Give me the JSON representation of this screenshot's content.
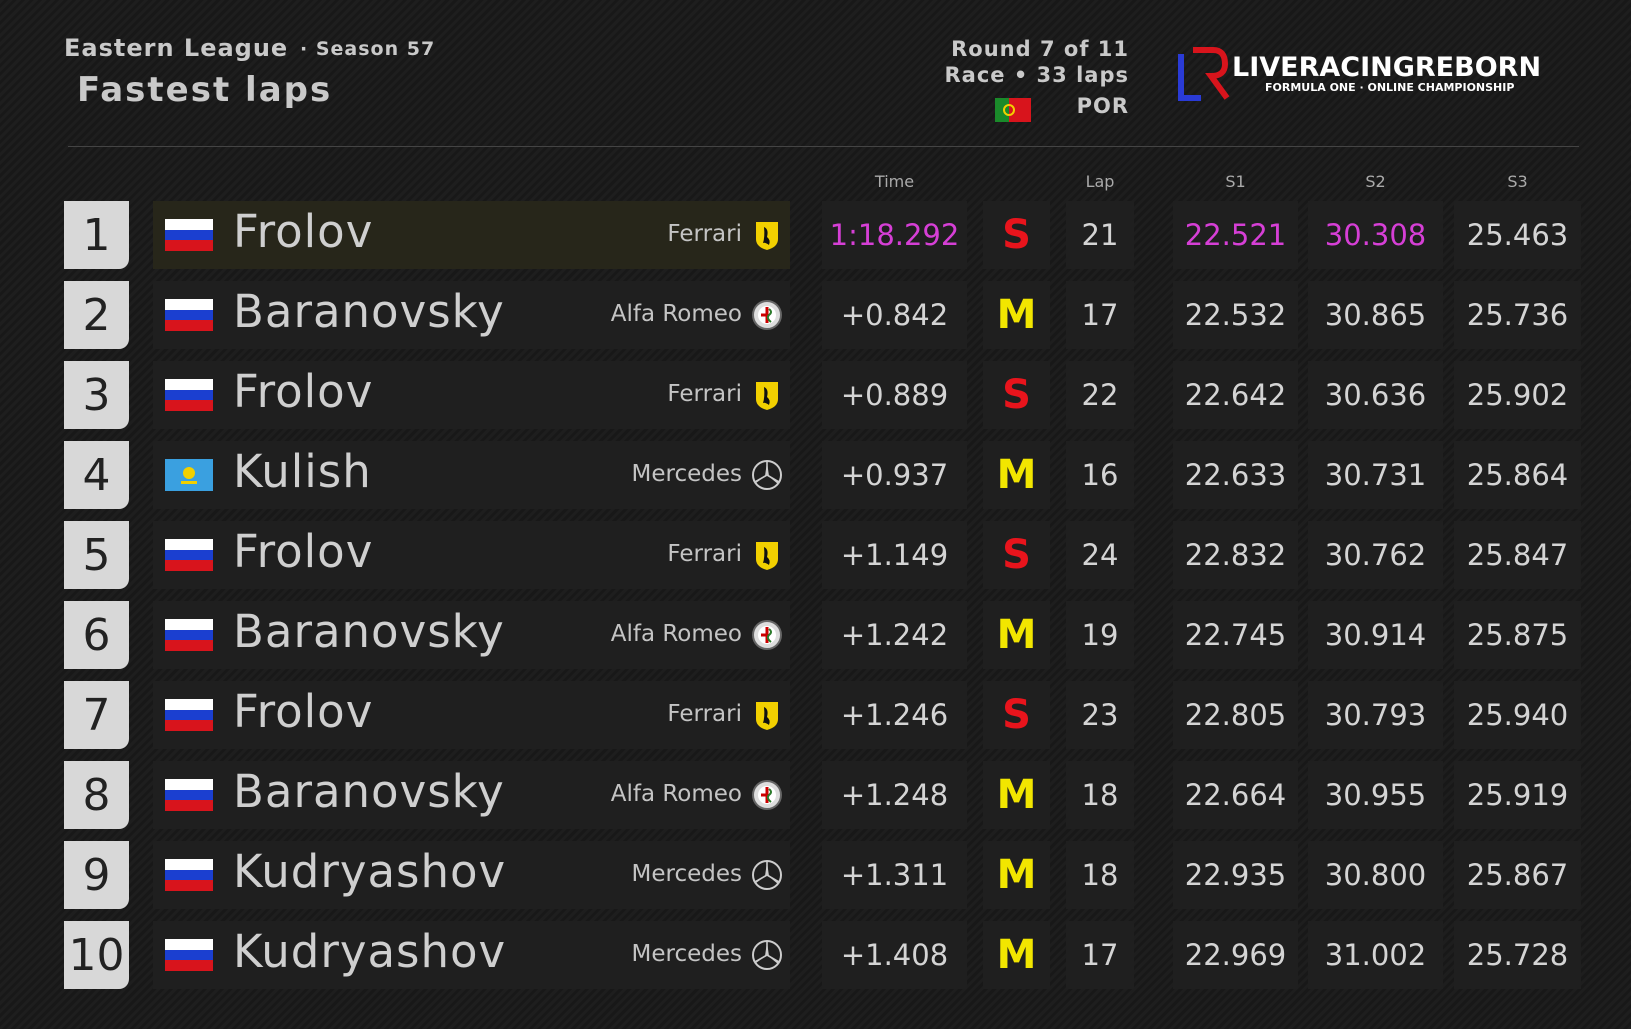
{
  "header": {
    "league": "Eastern League",
    "season": "· Season 57",
    "title": "Fastest laps",
    "round": "Round 7 of 11",
    "race": "Race • 33 laps",
    "country": "POR",
    "brand": "LIVERACINGREBORN",
    "tagline": "FORMULA ONE · ONLINE CHAMPIONSHIP"
  },
  "table": {
    "columns": {
      "time": "Time",
      "lap": "Lap",
      "s1": "S1",
      "s2": "S2",
      "s3": "S3"
    },
    "best_color": "#d63fd6",
    "tyre_colors": {
      "S": "#e8141c",
      "M": "#f2e600"
    },
    "rows": [
      {
        "pos": 1,
        "flag": "RU",
        "driver": "Frolov",
        "team": "Ferrari",
        "time": "1:18.292",
        "tyre": "S",
        "lap": 21,
        "s1": "22.521",
        "s2": "30.308",
        "s3": "25.463",
        "best": [
          "time",
          "s1",
          "s2"
        ]
      },
      {
        "pos": 2,
        "flag": "RU",
        "driver": "Baranovsky",
        "team": "Alfa Romeo",
        "time": "+0.842",
        "tyre": "M",
        "lap": 17,
        "s1": "22.532",
        "s2": "30.865",
        "s3": "25.736"
      },
      {
        "pos": 3,
        "flag": "RU",
        "driver": "Frolov",
        "team": "Ferrari",
        "time": "+0.889",
        "tyre": "S",
        "lap": 22,
        "s1": "22.642",
        "s2": "30.636",
        "s3": "25.902"
      },
      {
        "pos": 4,
        "flag": "KZ",
        "driver": "Kulish",
        "team": "Mercedes",
        "time": "+0.937",
        "tyre": "M",
        "lap": 16,
        "s1": "22.633",
        "s2": "30.731",
        "s3": "25.864"
      },
      {
        "pos": 5,
        "flag": "RU",
        "driver": "Frolov",
        "team": "Ferrari",
        "time": "+1.149",
        "tyre": "S",
        "lap": 24,
        "s1": "22.832",
        "s2": "30.762",
        "s3": "25.847"
      },
      {
        "pos": 6,
        "flag": "RU",
        "driver": "Baranovsky",
        "team": "Alfa Romeo",
        "time": "+1.242",
        "tyre": "M",
        "lap": 19,
        "s1": "22.745",
        "s2": "30.914",
        "s3": "25.875"
      },
      {
        "pos": 7,
        "flag": "RU",
        "driver": "Frolov",
        "team": "Ferrari",
        "time": "+1.246",
        "tyre": "S",
        "lap": 23,
        "s1": "22.805",
        "s2": "30.793",
        "s3": "25.940"
      },
      {
        "pos": 8,
        "flag": "RU",
        "driver": "Baranovsky",
        "team": "Alfa Romeo",
        "time": "+1.248",
        "tyre": "M",
        "lap": 18,
        "s1": "22.664",
        "s2": "30.955",
        "s3": "25.919"
      },
      {
        "pos": 9,
        "flag": "RU",
        "driver": "Kudryashov",
        "team": "Mercedes",
        "time": "+1.311",
        "tyre": "M",
        "lap": 18,
        "s1": "22.935",
        "s2": "30.800",
        "s3": "25.867"
      },
      {
        "pos": 10,
        "flag": "RU",
        "driver": "Kudryashov",
        "team": "Mercedes",
        "time": "+1.408",
        "tyre": "M",
        "lap": 17,
        "s1": "22.969",
        "s2": "31.002",
        "s3": "25.728"
      }
    ]
  }
}
